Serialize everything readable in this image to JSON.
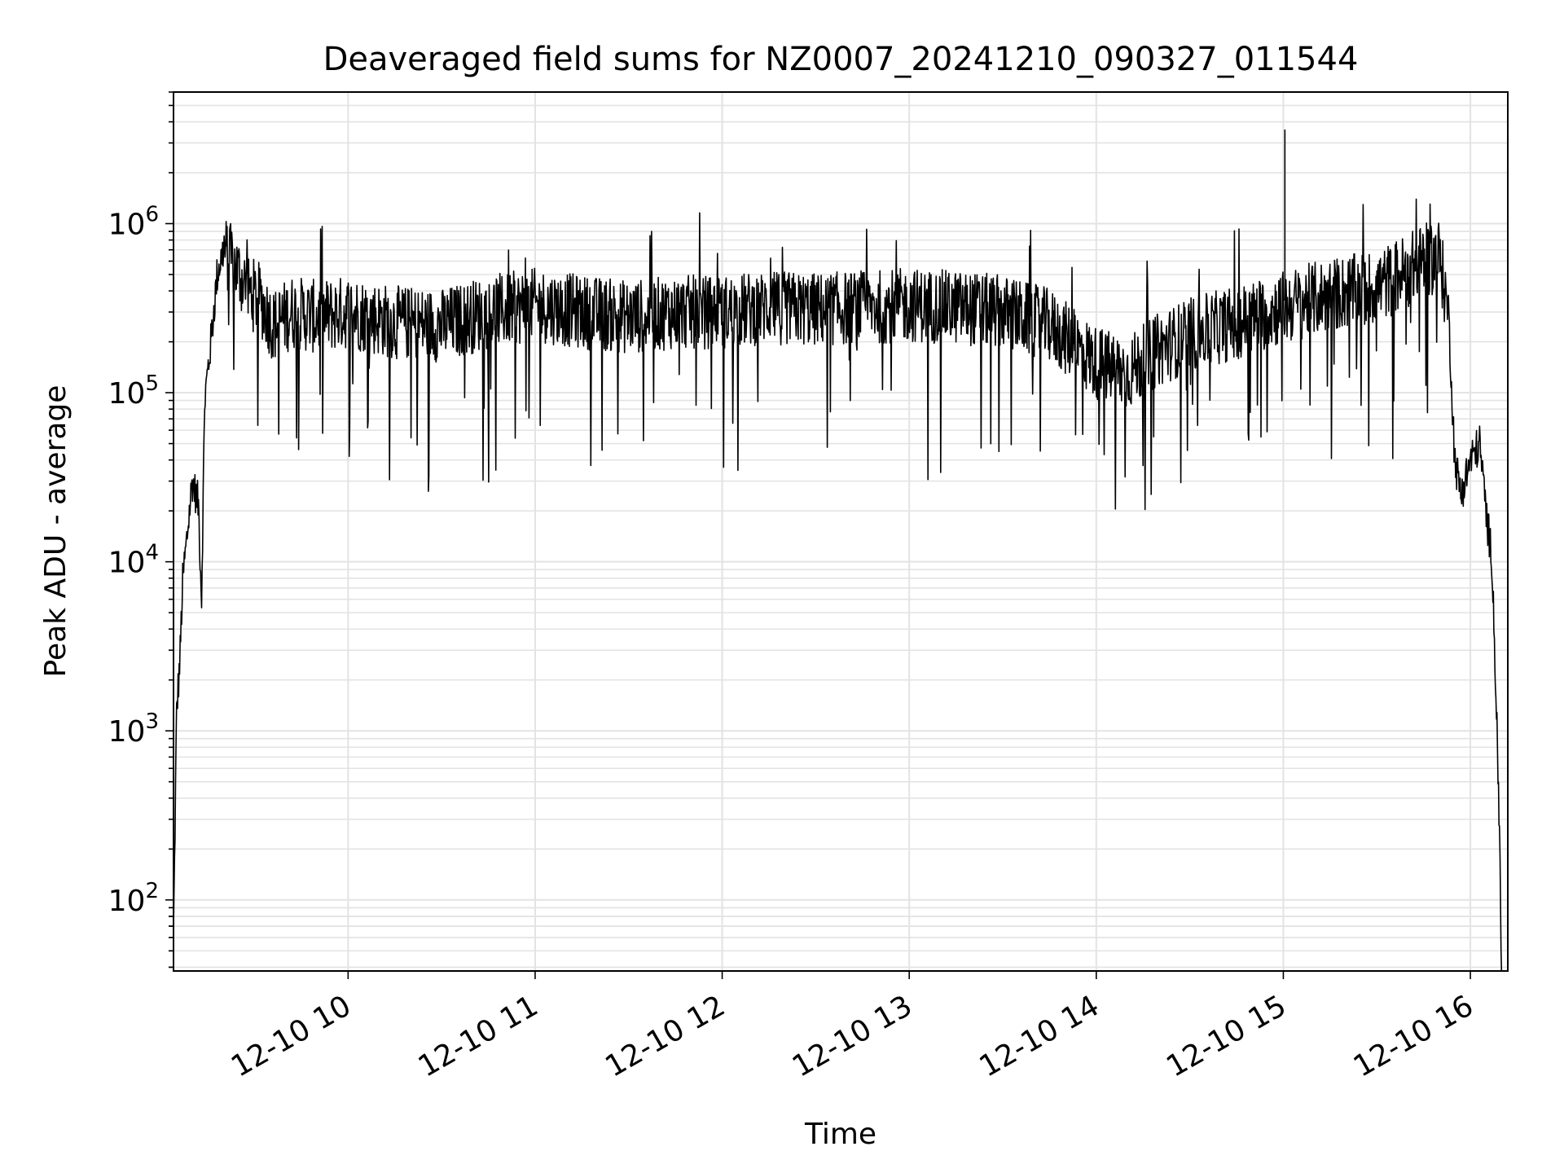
{
  "chart_data": {
    "type": "line",
    "title": "Deaveraged field sums for NZ0007_20241210_090327_011544",
    "xlabel": "Time",
    "ylabel": "Peak ADU - average",
    "yscale": "log",
    "ylim": [
      38,
      6000000
    ],
    "xlim": [
      "2024-12-10 09:04",
      "2024-12-10 16:12"
    ],
    "grid": true,
    "line_color": "#000000",
    "grid_color": "#e3e3e3",
    "x_ticks": [
      {
        "value": "2024-12-10 10:00",
        "label": "12-10 10"
      },
      {
        "value": "2024-12-10 11:00",
        "label": "12-10 11"
      },
      {
        "value": "2024-12-10 12:00",
        "label": "12-10 12"
      },
      {
        "value": "2024-12-10 13:00",
        "label": "12-10 13"
      },
      {
        "value": "2024-12-10 14:00",
        "label": "12-10 14"
      },
      {
        "value": "2024-12-10 15:00",
        "label": "12-10 15"
      },
      {
        "value": "2024-12-10 16:00",
        "label": "12-10 16"
      }
    ],
    "y_ticks": [
      {
        "value": 100,
        "base": "10",
        "exp": "2"
      },
      {
        "value": 1000,
        "base": "10",
        "exp": "3"
      },
      {
        "value": 10000,
        "base": "10",
        "exp": "4"
      },
      {
        "value": 100000,
        "base": "10",
        "exp": "5"
      },
      {
        "value": 1000000,
        "base": "10",
        "exp": "6"
      }
    ],
    "series": [
      {
        "points": [
          [
            "2024-12-10 09:04",
            60
          ],
          [
            "2024-12-10 09:05",
            1300
          ],
          [
            "2024-12-10 09:06",
            2500
          ],
          [
            "2024-12-10 09:07",
            8000
          ],
          [
            "2024-12-10 09:08",
            12000
          ],
          [
            "2024-12-10 09:10",
            30000
          ],
          [
            "2024-12-10 09:12",
            22000
          ],
          [
            "2024-12-10 09:13",
            6000
          ],
          [
            "2024-12-10 09:14",
            90000
          ],
          [
            "2024-12-10 09:16",
            200000
          ],
          [
            "2024-12-10 09:18",
            500000
          ],
          [
            "2024-12-10 09:20",
            700000
          ],
          [
            "2024-12-10 09:24",
            550000
          ],
          [
            "2024-12-10 09:28",
            400000
          ],
          [
            "2024-12-10 09:32",
            350000
          ],
          [
            "2024-12-10 09:36",
            250000
          ],
          [
            "2024-12-10 09:42",
            300000
          ],
          [
            "2024-12-10 09:50",
            280000
          ],
          [
            "2024-12-10 10:00",
            300000
          ],
          [
            "2024-12-10 10:15",
            260000
          ],
          [
            "2024-12-10 10:30",
            250000
          ],
          [
            "2024-12-10 10:45",
            300000
          ],
          [
            "2024-12-10 11:00",
            330000
          ],
          [
            "2024-12-10 11:15",
            300000
          ],
          [
            "2024-12-10 11:30",
            280000
          ],
          [
            "2024-12-10 11:45",
            300000
          ],
          [
            "2024-12-10 12:00",
            300000
          ],
          [
            "2024-12-10 12:15",
            320000
          ],
          [
            "2024-12-10 12:30",
            310000
          ],
          [
            "2024-12-10 12:45",
            320000
          ],
          [
            "2024-12-10 13:00",
            330000
          ],
          [
            "2024-12-10 13:15",
            320000
          ],
          [
            "2024-12-10 13:30",
            300000
          ],
          [
            "2024-12-10 13:45",
            250000
          ],
          [
            "2024-12-10 14:00",
            150000
          ],
          [
            "2024-12-10 14:10",
            130000
          ],
          [
            "2024-12-10 14:20",
            180000
          ],
          [
            "2024-12-10 14:30",
            220000
          ],
          [
            "2024-12-10 14:45",
            260000
          ],
          [
            "2024-12-10 15:00",
            320000
          ],
          [
            "2024-12-10 15:15",
            380000
          ],
          [
            "2024-12-10 15:30",
            420000
          ],
          [
            "2024-12-10 15:45",
            600000
          ],
          [
            "2024-12-10 15:50",
            650000
          ],
          [
            "2024-12-10 15:53",
            300000
          ],
          [
            "2024-12-10 15:55",
            40000
          ],
          [
            "2024-12-10 15:57",
            25000
          ],
          [
            "2024-12-10 16:00",
            40000
          ],
          [
            "2024-12-10 16:03",
            50000
          ],
          [
            "2024-12-10 16:05",
            20000
          ],
          [
            "2024-12-10 16:07",
            10000
          ],
          [
            "2024-12-10 16:09",
            500
          ],
          [
            "2024-12-10 16:10",
            40
          ]
        ]
      }
    ]
  }
}
